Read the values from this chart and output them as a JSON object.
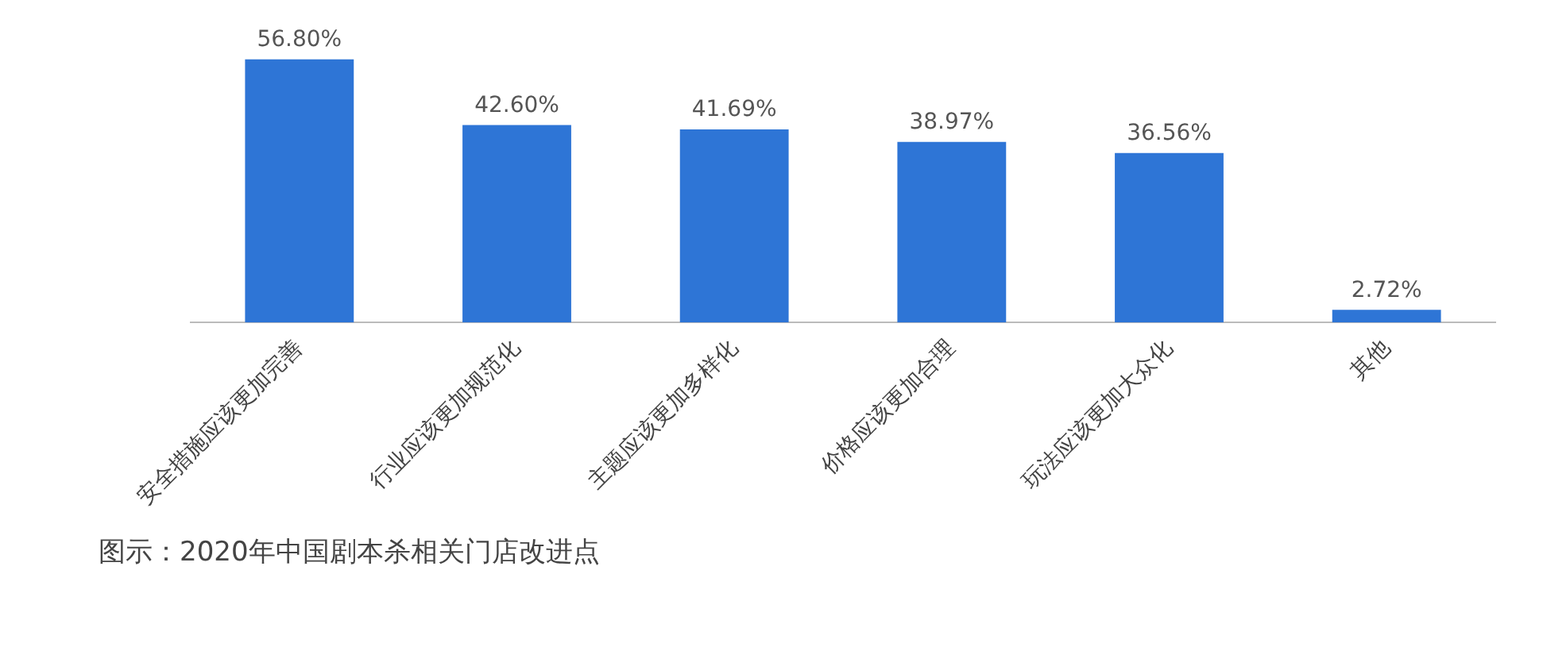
{
  "chart_data": {
    "type": "bar",
    "categories": [
      "安全措施应该更加完善",
      "行业应该更加规范化",
      "主题应该更加多样化",
      "价格应该更加合理",
      "玩法应该更加大众化",
      "其他"
    ],
    "values": [
      56.8,
      42.6,
      41.69,
      38.97,
      36.56,
      2.72
    ],
    "value_labels": [
      "56.80%",
      "42.60%",
      "41.69%",
      "38.97%",
      "36.56%",
      "2.72%"
    ],
    "color": "#2e75d6",
    "grid": false,
    "legend": false,
    "annotations": [
      "图示：2020年中国剧本杀相关门店改进点"
    ]
  }
}
